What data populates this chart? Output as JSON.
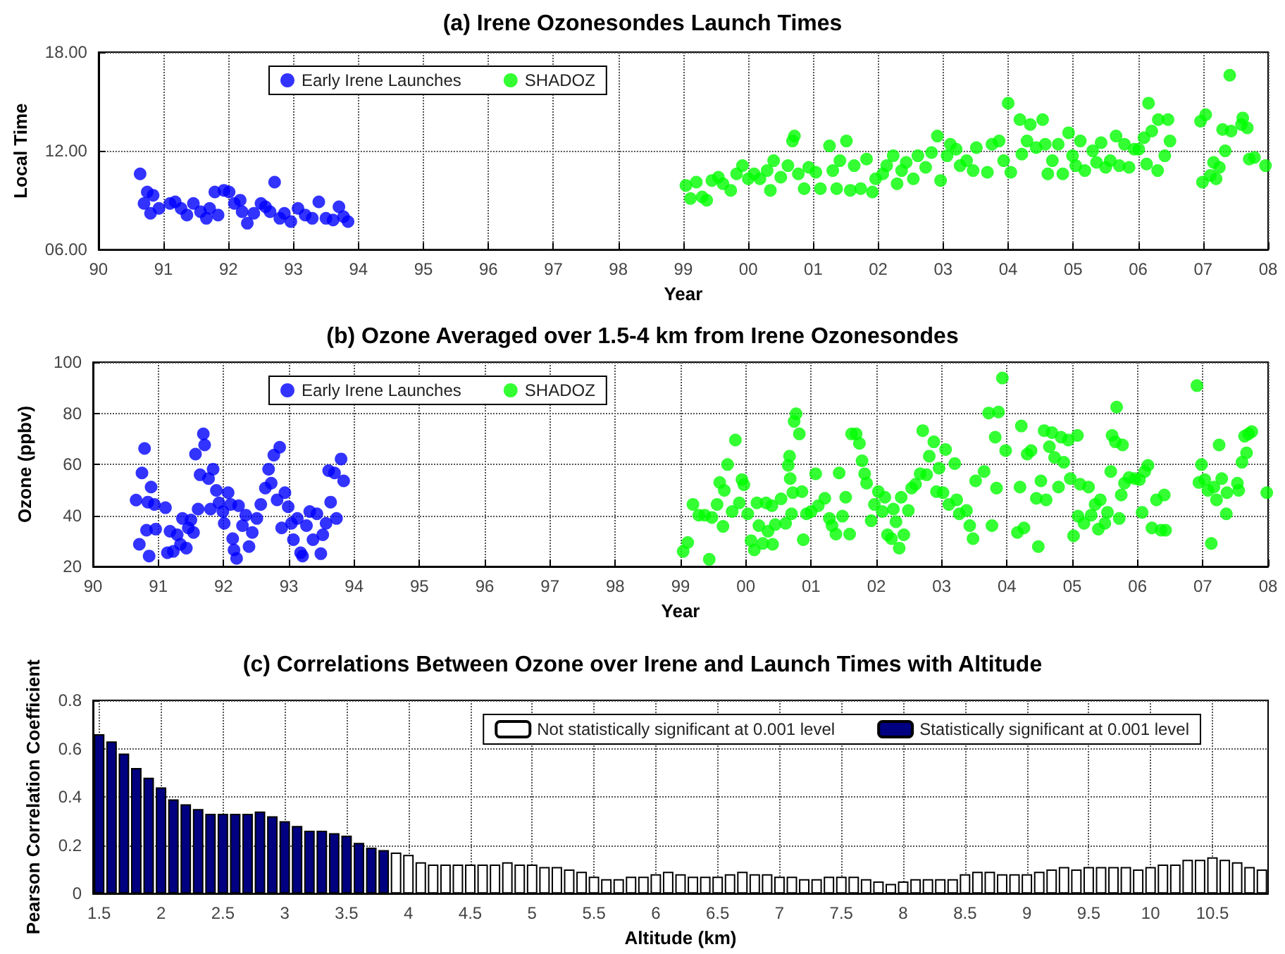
{
  "chart_data": [
    {
      "type": "scatter",
      "title": "(a) Irene Ozonesondes Launch Times",
      "xlabel": "Year",
      "ylabel": "Local Time",
      "xlim": [
        1990,
        2008
      ],
      "xticks": [
        {
          "value": 1990,
          "label": "90"
        },
        {
          "value": 1991,
          "label": "91"
        },
        {
          "value": 1992,
          "label": "92"
        },
        {
          "value": 1993,
          "label": "93"
        },
        {
          "value": 1994,
          "label": "94"
        },
        {
          "value": 1995,
          "label": "95"
        },
        {
          "value": 1996,
          "label": "96"
        },
        {
          "value": 1997,
          "label": "97"
        },
        {
          "value": 1998,
          "label": "98"
        },
        {
          "value": 1999,
          "label": "99"
        },
        {
          "value": 2000,
          "label": "00"
        },
        {
          "value": 2001,
          "label": "01"
        },
        {
          "value": 2002,
          "label": "02"
        },
        {
          "value": 2003,
          "label": "03"
        },
        {
          "value": 2004,
          "label": "04"
        },
        {
          "value": 2005,
          "label": "05"
        },
        {
          "value": 2006,
          "label": "06"
        },
        {
          "value": 2007,
          "label": "07"
        },
        {
          "value": 2008,
          "label": "08"
        }
      ],
      "ylim": [
        6,
        18
      ],
      "yticks": [
        {
          "value": 6,
          "label": "06.00"
        },
        {
          "value": 12,
          "label": "12.00"
        },
        {
          "value": 18,
          "label": "18.00"
        }
      ],
      "grid": true,
      "legend": "top left",
      "marker": "circle",
      "series": [
        {
          "name": "Early Irene Launches",
          "color": "#0000ff",
          "x": [
            1990.64,
            1990.7,
            1990.75,
            1990.8,
            1990.84,
            1990.93,
            1991.1,
            1991.18,
            1991.27,
            1991.36,
            1991.46,
            1991.57,
            1991.66,
            1991.71,
            1991.79,
            1991.84,
            1991.93,
            1992.01,
            1992.09,
            1992.18,
            1992.21,
            1992.29,
            1992.39,
            1992.5,
            1992.57,
            1992.64,
            1992.71,
            1992.79,
            1992.86,
            1992.96,
            1993.07,
            1993.18,
            1993.29,
            1993.39,
            1993.5,
            1993.61,
            1993.7,
            1993.77,
            1993.84
          ],
          "values": [
            10.6,
            8.8,
            9.5,
            8.2,
            9.3,
            8.5,
            8.8,
            8.9,
            8.5,
            8.1,
            8.8,
            8.3,
            7.9,
            8.5,
            9.5,
            8.1,
            9.6,
            9.5,
            8.8,
            9.0,
            8.3,
            7.6,
            8.2,
            8.8,
            8.6,
            8.3,
            10.1,
            7.9,
            8.2,
            7.7,
            8.5,
            8.1,
            7.9,
            8.9,
            7.9,
            7.8,
            8.6,
            8.0,
            7.7
          ]
        },
        {
          "name": "SHADOZ",
          "color": "#00ff00",
          "x": [
            1999.04,
            1999.11,
            1999.2,
            1999.29,
            1999.36,
            1999.44,
            1999.54,
            1999.61,
            1999.73,
            1999.82,
            1999.91,
            2000.0,
            2000.09,
            2000.18,
            2000.29,
            2000.34,
            2000.39,
            2000.5,
            2000.61,
            2000.68,
            2000.71,
            2000.77,
            2000.86,
            2000.93,
            2001.04,
            2001.11,
            2001.25,
            2001.3,
            2001.36,
            2001.41,
            2001.51,
            2001.57,
            2001.63,
            2001.73,
            2001.82,
            2001.91,
            2001.96,
            2002.07,
            2002.13,
            2002.23,
            2002.29,
            2002.36,
            2002.43,
            2002.54,
            2002.61,
            2002.73,
            2002.82,
            2002.91,
            2002.96,
            2003.06,
            2003.11,
            2003.2,
            2003.26,
            2003.36,
            2003.46,
            2003.51,
            2003.68,
            2003.75,
            2003.86,
            2003.93,
            2004.0,
            2004.04,
            2004.18,
            2004.21,
            2004.29,
            2004.34,
            2004.43,
            2004.53,
            2004.57,
            2004.61,
            2004.68,
            2004.77,
            2004.84,
            2004.93,
            2004.99,
            2005.04,
            2005.11,
            2005.18,
            2005.3,
            2005.36,
            2005.43,
            2005.5,
            2005.57,
            2005.66,
            2005.71,
            2005.79,
            2005.86,
            2005.94,
            2006.01,
            2006.09,
            2006.13,
            2006.16,
            2006.21,
            2006.3,
            2006.31,
            2006.41,
            2006.46,
            2006.49,
            2006.96,
            2006.99,
            2007.04,
            2007.11,
            2007.16,
            2007.2,
            2007.25,
            2007.3,
            2007.34,
            2007.41,
            2007.43,
            2007.59,
            2007.61,
            2007.68,
            2007.71,
            2007.79,
            2007.96
          ],
          "values": [
            9.9,
            9.1,
            10.1,
            9.2,
            9.0,
            10.2,
            10.4,
            10.0,
            9.6,
            10.6,
            11.1,
            10.3,
            10.6,
            10.3,
            10.8,
            9.6,
            11.4,
            10.4,
            11.1,
            12.6,
            12.9,
            10.6,
            9.7,
            11.0,
            10.7,
            9.7,
            12.3,
            10.8,
            9.7,
            11.4,
            12.6,
            9.6,
            11.1,
            9.7,
            11.5,
            9.5,
            10.3,
            10.6,
            11.1,
            11.7,
            10.0,
            10.8,
            11.3,
            10.3,
            11.7,
            11.0,
            11.9,
            12.9,
            10.2,
            11.7,
            12.4,
            12.1,
            11.1,
            11.4,
            10.8,
            12.2,
            10.7,
            12.4,
            12.6,
            11.4,
            14.9,
            10.7,
            13.9,
            11.8,
            12.6,
            13.6,
            12.2,
            13.9,
            12.4,
            10.6,
            11.4,
            12.4,
            10.6,
            13.1,
            11.7,
            11.1,
            12.6,
            10.8,
            12.0,
            11.3,
            12.5,
            11.0,
            11.4,
            12.9,
            11.1,
            12.4,
            11.0,
            12.1,
            12.1,
            12.8,
            11.2,
            14.9,
            13.2,
            10.8,
            13.9,
            11.7,
            13.9,
            12.6,
            13.8,
            10.1,
            14.2,
            10.5,
            11.3,
            10.3,
            11.0,
            13.3,
            12.0,
            16.6,
            13.2,
            13.6,
            14.0,
            13.4,
            11.5,
            11.6,
            11.1
          ]
        }
      ]
    },
    {
      "type": "scatter",
      "title": "(b) Ozone Averaged over 1.5-4 km from Irene Ozonesondes",
      "xlabel": "Year",
      "ylabel": "Ozone (ppbv)",
      "xlim": [
        1990,
        2008
      ],
      "xticks": [
        {
          "value": 1990,
          "label": "90"
        },
        {
          "value": 1991,
          "label": "91"
        },
        {
          "value": 1992,
          "label": "92"
        },
        {
          "value": 1993,
          "label": "93"
        },
        {
          "value": 1994,
          "label": "94"
        },
        {
          "value": 1995,
          "label": "95"
        },
        {
          "value": 1996,
          "label": "96"
        },
        {
          "value": 1997,
          "label": "97"
        },
        {
          "value": 1998,
          "label": "98"
        },
        {
          "value": 1999,
          "label": "99"
        },
        {
          "value": 2000,
          "label": "00"
        },
        {
          "value": 2001,
          "label": "01"
        },
        {
          "value": 2002,
          "label": "02"
        },
        {
          "value": 2003,
          "label": "03"
        },
        {
          "value": 2004,
          "label": "04"
        },
        {
          "value": 2005,
          "label": "05"
        },
        {
          "value": 2006,
          "label": "06"
        },
        {
          "value": 2007,
          "label": "07"
        },
        {
          "value": 2008,
          "label": "08"
        }
      ],
      "ylim": [
        20,
        100
      ],
      "yticks": [
        20,
        40,
        60,
        80,
        100
      ],
      "grid": true,
      "legend": "top left",
      "marker": "circle",
      "series": [
        {
          "name": "Early Irene Launches",
          "color": "#0000ff",
          "x": [
            1990.66,
            1990.71,
            1990.75,
            1990.79,
            1990.82,
            1990.86,
            1990.84,
            1990.89,
            1990.94,
            1990.96,
            1991.11,
            1991.14,
            1991.18,
            1991.23,
            1991.29,
            1991.34,
            1991.37,
            1991.43,
            1991.46,
            1991.5,
            1991.54,
            1991.57,
            1991.61,
            1991.64,
            1991.69,
            1991.71,
            1991.77,
            1991.8,
            1991.84,
            1991.89,
            1991.93,
            1991.99,
            1992.01,
            1992.07,
            1992.11,
            1992.14,
            1992.16,
            1992.2,
            1992.23,
            1992.29,
            1992.34,
            1992.39,
            1992.44,
            1992.51,
            1992.57,
            1992.64,
            1992.69,
            1992.73,
            1992.77,
            1992.82,
            1992.86,
            1992.89,
            1992.94,
            1992.99,
            1993.04,
            1993.07,
            1993.13,
            1993.18,
            1993.21,
            1993.27,
            1993.32,
            1993.37,
            1993.43,
            1993.49,
            1993.52,
            1993.57,
            1993.61,
            1993.64,
            1993.7,
            1993.73,
            1993.8,
            1993.84
          ],
          "values": [
            46.0,
            28.7,
            56.6,
            66.2,
            34.2,
            24.1,
            45.2,
            51.1,
            44.3,
            34.6,
            43.0,
            25.4,
            33.8,
            25.9,
            32.4,
            28.7,
            38.8,
            27.2,
            35.1,
            38.2,
            33.3,
            64.0,
            42.5,
            55.9,
            71.9,
            67.6,
            54.4,
            42.5,
            58.1,
            49.8,
            44.9,
            41.5,
            36.9,
            48.9,
            44.3,
            30.9,
            26.5,
            23.2,
            43.8,
            36.0,
            40.1,
            27.8,
            33.3,
            38.8,
            44.3,
            50.7,
            58.1,
            52.6,
            63.6,
            46.1,
            66.7,
            35.1,
            48.9,
            43.4,
            36.9,
            30.5,
            38.8,
            25.4,
            24.1,
            36.0,
            41.5,
            30.5,
            40.6,
            25.0,
            32.4,
            36.9,
            57.5,
            45.2,
            56.6,
            38.8,
            62.1,
            53.5
          ]
        },
        {
          "name": "SHADOZ",
          "color": "#00ff00",
          "x": [
            1999.04,
            1999.11,
            1999.19,
            1999.28,
            1999.37,
            1999.44,
            1999.48,
            1999.56,
            1999.6,
            1999.65,
            1999.67,
            1999.72,
            1999.79,
            1999.84,
            1999.9,
            1999.94,
            1999.97,
            2000.03,
            2000.08,
            2000.13,
            2000.17,
            2000.2,
            2000.26,
            2000.31,
            2000.34,
            2000.4,
            2000.41,
            2000.45,
            2000.54,
            2000.61,
            2000.65,
            2000.67,
            2000.68,
            2000.7,
            2000.72,
            2000.74,
            2000.77,
            2000.82,
            2000.86,
            2000.88,
            2000.93,
            2001.0,
            2001.07,
            2001.11,
            2001.21,
            2001.28,
            2001.32,
            2001.38,
            2001.43,
            2001.48,
            2001.53,
            2001.59,
            2001.62,
            2001.69,
            2001.74,
            2001.78,
            2001.82,
            2001.85,
            2001.92,
            2001.97,
            2002.03,
            2002.09,
            2002.13,
            2002.17,
            2002.23,
            2002.26,
            2002.3,
            2002.35,
            2002.38,
            2002.42,
            2002.49,
            2002.54,
            2002.6,
            2002.67,
            2002.71,
            2002.77,
            2002.81,
            2002.88,
            2002.92,
            2002.96,
            2003.02,
            2003.06,
            2003.11,
            2003.2,
            2003.23,
            2003.27,
            2003.38,
            2003.43,
            2003.48,
            2003.52,
            2003.65,
            2003.72,
            2003.77,
            2003.82,
            2003.84,
            2003.87,
            2003.93,
            2003.98,
            2004.16,
            2004.2,
            2004.22,
            2004.26,
            2004.31,
            2004.37,
            2004.45,
            2004.48,
            2004.52,
            2004.57,
            2004.6,
            2004.65,
            2004.69,
            2004.73,
            2004.79,
            2004.83,
            2004.87,
            2004.94,
            2004.97,
            2005.02,
            2005.08,
            2005.09,
            2005.12,
            2005.18,
            2005.25,
            2005.29,
            2005.35,
            2005.4,
            2005.43,
            2005.5,
            2005.54,
            2005.59,
            2005.61,
            2005.66,
            2005.68,
            2005.72,
            2005.75,
            2005.77,
            2005.8,
            2005.87,
            2005.96,
            2006.03,
            2006.07,
            2006.11,
            2006.16,
            2006.22,
            2006.29,
            2006.36,
            2006.41,
            2006.43,
            2006.91,
            2006.94,
            2006.98,
            2007.03,
            2007.08,
            2007.13,
            2007.17,
            2007.21,
            2007.25,
            2007.29,
            2007.36,
            2007.37,
            2007.53,
            2007.55,
            2007.6,
            2007.64,
            2007.67,
            2007.7,
            2007.75,
            2007.98
          ],
          "values": [
            25.9,
            29.4,
            44.3,
            40.1,
            40.1,
            22.8,
            39.2,
            44.3,
            52.9,
            35.7,
            49.8,
            59.9,
            41.5,
            69.5,
            44.9,
            54.0,
            52.0,
            40.6,
            30.1,
            26.5,
            44.9,
            36.0,
            29.0,
            44.9,
            33.8,
            43.8,
            28.7,
            36.4,
            46.5,
            36.9,
            59.6,
            63.2,
            54.4,
            40.6,
            48.9,
            76.8,
            79.8,
            71.9,
            49.3,
            30.5,
            40.6,
            41.5,
            56.3,
            43.8,
            46.7,
            38.8,
            36.0,
            32.7,
            56.6,
            39.7,
            47.1,
            32.7,
            71.9,
            71.9,
            68.2,
            61.4,
            56.3,
            52.6,
            37.9,
            44.3,
            49.3,
            41.5,
            47.1,
            32.4,
            30.9,
            42.5,
            37.5,
            27.2,
            47.1,
            32.4,
            41.9,
            50.7,
            52.2,
            56.3,
            73.2,
            55.9,
            63.2,
            68.8,
            49.3,
            58.5,
            48.9,
            65.8,
            44.3,
            60.3,
            46.1,
            40.6,
            41.9,
            36.0,
            30.9,
            53.5,
            57.2,
            80.1,
            36.0,
            70.6,
            50.7,
            80.5,
            93.8,
            65.4,
            33.3,
            51.1,
            75.0,
            35.1,
            64.0,
            65.4,
            46.7,
            27.8,
            53.5,
            73.2,
            46.1,
            66.9,
            72.4,
            62.7,
            51.1,
            70.6,
            60.8,
            69.5,
            54.4,
            32.0,
            71.3,
            39.7,
            52.2,
            36.9,
            51.1,
            40.1,
            44.3,
            34.6,
            46.1,
            36.9,
            41.2,
            57.2,
            71.3,
            68.8,
            82.4,
            38.8,
            48.0,
            67.6,
            52.6,
            54.8,
            54.4,
            54.0,
            41.2,
            57.2,
            59.6,
            35.1,
            46.1,
            34.2,
            48.0,
            34.2,
            90.8,
            52.9,
            59.9,
            54.0,
            49.8,
            29.0,
            51.1,
            46.1,
            67.6,
            54.4,
            40.6,
            48.9,
            52.6,
            49.8,
            60.8,
            71.0,
            64.5,
            71.9,
            72.8,
            48.9
          ]
        }
      ]
    },
    {
      "type": "bar",
      "title": "(c) Correlations Between Ozone over Irene and Launch Times with Altitude",
      "xlabel": "Altitude (km)",
      "ylabel": "Pearson Correlation Coefficient",
      "xlim": [
        1.45,
        10.95
      ],
      "xticks": [
        1.5,
        2,
        2.5,
        3,
        3.5,
        4,
        4.5,
        5,
        5.5,
        6,
        6.5,
        7,
        7.5,
        8,
        8.5,
        9,
        9.5,
        10,
        10.5
      ],
      "ylim": [
        0,
        0.8
      ],
      "yticks": [
        0,
        0.2,
        0.4,
        0.6,
        0.8
      ],
      "grid": true,
      "legend": "top right",
      "series": [
        {
          "name": "Not statistically significant at 0.001 level",
          "color": "#ffffff",
          "x": [
            3.9,
            4.0,
            4.1,
            4.2,
            4.3,
            4.4,
            4.5,
            4.6,
            4.7,
            4.8,
            4.9,
            5.0,
            5.1,
            5.2,
            5.3,
            5.4,
            5.5,
            5.6,
            5.7,
            5.8,
            5.9,
            6.0,
            6.1,
            6.2,
            6.3,
            6.4,
            6.5,
            6.6,
            6.7,
            6.8,
            6.9,
            7.0,
            7.1,
            7.2,
            7.3,
            7.4,
            7.5,
            7.6,
            7.7,
            7.8,
            7.9,
            8.0,
            8.1,
            8.2,
            8.3,
            8.4,
            8.5,
            8.6,
            8.7,
            8.8,
            8.9,
            9.0,
            9.1,
            9.2,
            9.3,
            9.4,
            9.5,
            9.6,
            9.7,
            9.8,
            9.9,
            10.0,
            10.1,
            10.2,
            10.3,
            10.4,
            10.5,
            10.6,
            10.7,
            10.8,
            10.9
          ],
          "values": [
            0.17,
            0.16,
            0.13,
            0.12,
            0.12,
            0.12,
            0.12,
            0.12,
            0.12,
            0.13,
            0.12,
            0.12,
            0.11,
            0.11,
            0.1,
            0.09,
            0.07,
            0.06,
            0.06,
            0.07,
            0.07,
            0.08,
            0.09,
            0.08,
            0.07,
            0.07,
            0.07,
            0.08,
            0.09,
            0.08,
            0.08,
            0.07,
            0.07,
            0.06,
            0.06,
            0.07,
            0.07,
            0.07,
            0.06,
            0.05,
            0.04,
            0.05,
            0.06,
            0.06,
            0.06,
            0.06,
            0.08,
            0.09,
            0.09,
            0.08,
            0.08,
            0.08,
            0.09,
            0.1,
            0.11,
            0.1,
            0.11,
            0.11,
            0.11,
            0.11,
            0.1,
            0.11,
            0.12,
            0.12,
            0.14,
            0.14,
            0.15,
            0.14,
            0.13,
            0.11,
            0.1
          ]
        },
        {
          "name": "Statistically significant at 0.001 level",
          "color": "#000080",
          "x": [
            1.5,
            1.6,
            1.7,
            1.8,
            1.9,
            2.0,
            2.1,
            2.2,
            2.3,
            2.4,
            2.5,
            2.6,
            2.7,
            2.8,
            2.9,
            3.0,
            3.1,
            3.2,
            3.3,
            3.4,
            3.5,
            3.6,
            3.7,
            3.8
          ],
          "values": [
            0.66,
            0.63,
            0.58,
            0.52,
            0.48,
            0.44,
            0.39,
            0.37,
            0.35,
            0.33,
            0.33,
            0.33,
            0.33,
            0.34,
            0.32,
            0.3,
            0.28,
            0.26,
            0.26,
            0.25,
            0.24,
            0.21,
            0.19,
            0.18
          ]
        }
      ]
    }
  ]
}
